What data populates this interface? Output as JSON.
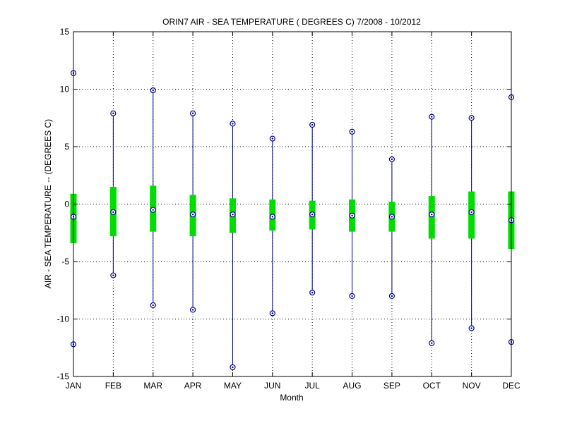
{
  "chart_data": {
    "type": "box",
    "title": "ORIN7  AIR - SEA TEMPERATURE ( DEGREES C) 7/2008 - 10/2012",
    "xlabel": "Month",
    "ylabel": "AIR - SEA TEMPERATURE -- (DEGREES C)",
    "ylim": [
      -15,
      15
    ],
    "yticks": [
      -15,
      -10,
      -5,
      0,
      5,
      10,
      15
    ],
    "grid": true,
    "categories": [
      "JAN",
      "FEB",
      "MAR",
      "APR",
      "MAY",
      "JUN",
      "JUL",
      "AUG",
      "SEP",
      "OCT",
      "NOV",
      "DEC"
    ],
    "max": [
      11.4,
      7.9,
      9.9,
      7.9,
      7.0,
      5.7,
      6.9,
      6.3,
      3.9,
      7.6,
      7.5,
      9.3
    ],
    "q3": [
      0.9,
      1.5,
      1.6,
      0.8,
      0.5,
      0.4,
      0.3,
      0.4,
      0.2,
      0.7,
      1.1,
      1.1
    ],
    "median": [
      -1.1,
      -0.7,
      -0.5,
      -0.9,
      -0.9,
      -1.1,
      -0.9,
      -1.0,
      -1.1,
      -0.9,
      -0.7,
      -1.4
    ],
    "q1": [
      -3.4,
      -2.8,
      -2.4,
      -2.8,
      -2.5,
      -2.3,
      -2.2,
      -2.4,
      -2.4,
      -3.0,
      -3.0,
      -3.9
    ],
    "min": [
      -12.2,
      -6.2,
      -8.8,
      -9.2,
      -14.2,
      -9.5,
      -7.7,
      -8.0,
      -8.0,
      -12.1,
      -10.8,
      -12.0
    ],
    "colors": {
      "whisker": "#00008b",
      "box": "#00dd00",
      "marker": "#00008b",
      "grid": "#000000"
    }
  }
}
